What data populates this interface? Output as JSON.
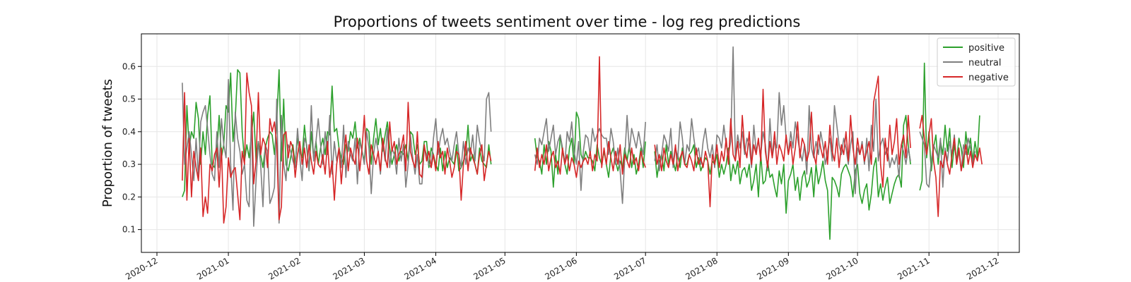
{
  "chart_data": {
    "type": "line",
    "title": "Proportions of tweets sentiment over time - log reg predictions",
    "xlabel": "",
    "ylabel": "Proportion of tweets",
    "x_range": [
      "2020-12-01",
      "2021-12-01"
    ],
    "ylim": [
      0.03,
      0.7
    ],
    "x_ticks": [
      "2020-12",
      "2021-01",
      "2021-02",
      "2021-03",
      "2021-04",
      "2021-05",
      "2021-06",
      "2021-07",
      "2021-08",
      "2021-09",
      "2021-10",
      "2021-11",
      "2021-12"
    ],
    "y_ticks": [
      0.1,
      0.2,
      0.3,
      0.4,
      0.5,
      0.6
    ],
    "grid": true,
    "legend_position": "top-right",
    "segments": [
      {
        "start": "2020-12-12",
        "end": "2021-04-25"
      },
      {
        "start": "2021-05-14",
        "end": "2021-07-01"
      },
      {
        "start": "2021-07-05",
        "end": "2021-10-24"
      },
      {
        "start": "2021-10-28",
        "end": "2021-11-24"
      }
    ],
    "series": [
      {
        "name": "positive",
        "color": "#2ca02c",
        "values": [
          0.2,
          0.22,
          0.48,
          0.35,
          0.4,
          0.38,
          0.49,
          0.44,
          0.3,
          0.4,
          0.33,
          0.45,
          0.51,
          0.3,
          0.29,
          0.34,
          0.45,
          0.32,
          0.36,
          0.48,
          0.46,
          0.58,
          0.37,
          0.44,
          0.59,
          0.58,
          0.4,
          0.31,
          0.36,
          0.32,
          0.39,
          0.46,
          0.31,
          0.37,
          0.33,
          0.29,
          0.35,
          0.38,
          0.4,
          0.39,
          0.33,
          0.43,
          0.59,
          0.31,
          0.5,
          0.3,
          0.28,
          0.32,
          0.36,
          0.3,
          0.38,
          0.34,
          0.32,
          0.42,
          0.35,
          0.28,
          0.4,
          0.32,
          0.37,
          0.3,
          0.35,
          0.38,
          0.33,
          0.4,
          0.39,
          0.54,
          0.4,
          0.41,
          0.35,
          0.32,
          0.3,
          0.36,
          0.34,
          0.4,
          0.38,
          0.43,
          0.35,
          0.38,
          0.34,
          0.31,
          0.41,
          0.4,
          0.3,
          0.38,
          0.44,
          0.36,
          0.41,
          0.34,
          0.39,
          0.43,
          0.35,
          0.3,
          0.33,
          0.36,
          0.31,
          0.34,
          0.33,
          0.36,
          0.31,
          0.4,
          0.39,
          0.33,
          0.36,
          0.3,
          0.31,
          0.37,
          0.37,
          0.29,
          0.35,
          0.33,
          0.3,
          0.28,
          0.35,
          0.28,
          0.34,
          0.29,
          0.32,
          0.31,
          0.3,
          0.36,
          0.28,
          0.29,
          0.31,
          0.33,
          0.42,
          0.31,
          0.33,
          0.3,
          0.27,
          0.35,
          0.31,
          0.3,
          0.29,
          0.36,
          0.3,
          0.38,
          0.32,
          0.31,
          0.27,
          0.36,
          0.3,
          0.37,
          0.34,
          0.23,
          0.33,
          0.27,
          0.39,
          0.34,
          0.3,
          0.27,
          0.35,
          0.38,
          0.3,
          0.46,
          0.44,
          0.33,
          0.31,
          0.34,
          0.32,
          0.32,
          0.31,
          0.28,
          0.36,
          0.32,
          0.3,
          0.34,
          0.3,
          0.26,
          0.33,
          0.35,
          0.31,
          0.28,
          0.31,
          0.29,
          0.35,
          0.31,
          0.36,
          0.29,
          0.33,
          0.27,
          0.3,
          0.35,
          0.29,
          0.37,
          0.34,
          0.26,
          0.31,
          0.33,
          0.28,
          0.36,
          0.3,
          0.34,
          0.31,
          0.28,
          0.33,
          0.29,
          0.35,
          0.3,
          0.3,
          0.33,
          0.34,
          0.36,
          0.29,
          0.32,
          0.28,
          0.3,
          0.32,
          0.31,
          0.27,
          0.31,
          0.3,
          0.33,
          0.26,
          0.3,
          0.27,
          0.3,
          0.35,
          0.25,
          0.3,
          0.27,
          0.31,
          0.24,
          0.28,
          0.29,
          0.26,
          0.3,
          0.22,
          0.25,
          0.3,
          0.2,
          0.33,
          0.24,
          0.25,
          0.31,
          0.26,
          0.27,
          0.23,
          0.2,
          0.28,
          0.24,
          0.3,
          0.15,
          0.25,
          0.27,
          0.3,
          0.22,
          0.26,
          0.19,
          0.26,
          0.28,
          0.23,
          0.25,
          0.29,
          0.2,
          0.3,
          0.24,
          0.27,
          0.31,
          0.25,
          0.22,
          0.07,
          0.26,
          0.25,
          0.23,
          0.2,
          0.27,
          0.29,
          0.3,
          0.28,
          0.26,
          0.2,
          0.28,
          0.3,
          0.21,
          0.18,
          0.22,
          0.24,
          0.16,
          0.21,
          0.29,
          0.32,
          0.2,
          0.24,
          0.19,
          0.23,
          0.26,
          0.18,
          0.21,
          0.24,
          0.26,
          0.27,
          0.23,
          0.42,
          0.45,
          0.36,
          0.3,
          0.22,
          0.25,
          0.61,
          0.32,
          0.4,
          0.28,
          0.35,
          0.39,
          0.3,
          0.37,
          0.33,
          0.42,
          0.34,
          0.41,
          0.29,
          0.36,
          0.31,
          0.38,
          0.35,
          0.29,
          0.4,
          0.33,
          0.38,
          0.31,
          0.37,
          0.32,
          0.45
        ]
      },
      {
        "name": "neutral",
        "color": "#7f7f7f",
        "values": [
          0.55,
          0.3,
          0.35,
          0.4,
          0.33,
          0.25,
          0.38,
          0.26,
          0.43,
          0.46,
          0.48,
          0.41,
          0.33,
          0.27,
          0.25,
          0.4,
          0.29,
          0.44,
          0.36,
          0.32,
          0.56,
          0.3,
          0.16,
          0.46,
          0.38,
          0.34,
          0.27,
          0.3,
          0.19,
          0.17,
          0.45,
          0.11,
          0.25,
          0.37,
          0.3,
          0.17,
          0.36,
          0.34,
          0.18,
          0.2,
          0.23,
          0.5,
          0.12,
          0.45,
          0.3,
          0.25,
          0.36,
          0.34,
          0.31,
          0.29,
          0.41,
          0.32,
          0.25,
          0.38,
          0.36,
          0.28,
          0.48,
          0.31,
          0.37,
          0.44,
          0.36,
          0.3,
          0.4,
          0.33,
          0.45,
          0.27,
          0.37,
          0.31,
          0.35,
          0.29,
          0.42,
          0.26,
          0.37,
          0.33,
          0.31,
          0.38,
          0.24,
          0.37,
          0.34,
          0.3,
          0.4,
          0.35,
          0.21,
          0.33,
          0.38,
          0.34,
          0.27,
          0.37,
          0.31,
          0.41,
          0.29,
          0.35,
          0.33,
          0.27,
          0.38,
          0.31,
          0.36,
          0.23,
          0.3,
          0.39,
          0.32,
          0.27,
          0.33,
          0.24,
          0.24,
          0.35,
          0.33,
          0.3,
          0.29,
          0.38,
          0.44,
          0.33,
          0.38,
          0.41,
          0.36,
          0.38,
          0.34,
          0.31,
          0.36,
          0.4,
          0.33,
          0.29,
          0.37,
          0.3,
          0.35,
          0.33,
          0.39,
          0.31,
          0.42,
          0.37,
          0.34,
          0.31,
          0.5,
          0.52,
          0.4,
          0.33,
          0.3,
          0.38,
          0.36,
          0.4,
          0.44,
          0.34,
          0.38,
          0.42,
          0.33,
          0.37,
          0.39,
          0.35,
          0.3,
          0.4,
          0.37,
          0.43,
          0.34,
          0.3,
          0.37,
          0.22,
          0.34,
          0.39,
          0.38,
          0.33,
          0.41,
          0.37,
          0.39,
          0.41,
          0.39,
          0.38,
          0.38,
          0.33,
          0.41,
          0.37,
          0.3,
          0.35,
          0.28,
          0.18,
          0.32,
          0.45,
          0.34,
          0.41,
          0.38,
          0.35,
          0.4,
          0.36,
          0.33,
          0.43,
          0.31,
          0.36,
          0.28,
          0.33,
          0.39,
          0.37,
          0.34,
          0.41,
          0.29,
          0.35,
          0.32,
          0.43,
          0.38,
          0.3,
          0.36,
          0.34,
          0.44,
          0.38,
          0.33,
          0.35,
          0.3,
          0.37,
          0.41,
          0.35,
          0.32,
          0.36,
          0.29,
          0.39,
          0.38,
          0.35,
          0.42,
          0.36,
          0.33,
          0.37,
          0.66,
          0.32,
          0.39,
          0.35,
          0.4,
          0.33,
          0.38,
          0.36,
          0.29,
          0.42,
          0.34,
          0.37,
          0.33,
          0.4,
          0.36,
          0.28,
          0.44,
          0.32,
          0.37,
          0.35,
          0.52,
          0.42,
          0.48,
          0.38,
          0.33,
          0.4,
          0.35,
          0.43,
          0.38,
          0.34,
          0.31,
          0.36,
          0.27,
          0.48,
          0.35,
          0.32,
          0.37,
          0.33,
          0.4,
          0.36,
          0.3,
          0.34,
          0.38,
          0.31,
          0.48,
          0.42,
          0.36,
          0.33,
          0.38,
          0.35,
          0.3,
          0.36,
          0.4,
          0.21,
          0.35,
          0.33,
          0.37,
          0.3,
          0.38,
          0.28,
          0.42,
          0.34,
          0.5,
          0.31,
          0.36,
          0.38,
          0.33,
          0.35,
          0.29,
          0.32,
          0.3,
          0.33,
          0.26,
          0.36,
          0.34,
          0.3,
          0.35,
          0.31,
          0.4,
          0.38,
          0.36,
          0.24,
          0.23,
          0.31,
          0.36,
          0.34,
          0.32,
          0.38,
          0.23,
          0.35,
          0.31,
          0.37,
          0.33,
          0.39,
          0.3,
          0.34,
          0.28,
          0.36,
          0.33,
          0.38,
          0.35,
          0.3,
          0.34
        ]
      },
      {
        "name": "negative",
        "color": "#d62728",
        "values": [
          0.25,
          0.52,
          0.19,
          0.38,
          0.2,
          0.34,
          0.29,
          0.25,
          0.35,
          0.14,
          0.2,
          0.15,
          0.3,
          0.28,
          0.33,
          0.35,
          0.23,
          0.35,
          0.12,
          0.17,
          0.32,
          0.26,
          0.28,
          0.29,
          0.21,
          0.13,
          0.34,
          0.3,
          0.58,
          0.52,
          0.48,
          0.24,
          0.31,
          0.52,
          0.33,
          0.38,
          0.36,
          0.29,
          0.44,
          0.4,
          0.43,
          0.36,
          0.13,
          0.17,
          0.39,
          0.4,
          0.32,
          0.37,
          0.35,
          0.26,
          0.33,
          0.37,
          0.3,
          0.35,
          0.29,
          0.36,
          0.31,
          0.27,
          0.34,
          0.3,
          0.29,
          0.33,
          0.27,
          0.37,
          0.26,
          0.31,
          0.19,
          0.3,
          0.35,
          0.24,
          0.33,
          0.39,
          0.28,
          0.35,
          0.32,
          0.3,
          0.38,
          0.28,
          0.35,
          0.45,
          0.31,
          0.27,
          0.36,
          0.33,
          0.3,
          0.34,
          0.28,
          0.38,
          0.32,
          0.29,
          0.43,
          0.34,
          0.37,
          0.3,
          0.33,
          0.35,
          0.39,
          0.28,
          0.49,
          0.34,
          0.31,
          0.29,
          0.4,
          0.27,
          0.26,
          0.36,
          0.31,
          0.34,
          0.29,
          0.33,
          0.28,
          0.37,
          0.32,
          0.34,
          0.27,
          0.35,
          0.31,
          0.26,
          0.29,
          0.34,
          0.33,
          0.19,
          0.3,
          0.37,
          0.28,
          0.35,
          0.32,
          0.3,
          0.27,
          0.33,
          0.36,
          0.25,
          0.3,
          0.34,
          0.31,
          0.28,
          0.35,
          0.29,
          0.33,
          0.3,
          0.36,
          0.28,
          0.32,
          0.34,
          0.29,
          0.31,
          0.27,
          0.35,
          0.3,
          0.33,
          0.28,
          0.32,
          0.3,
          0.26,
          0.31,
          0.29,
          0.31,
          0.32,
          0.3,
          0.34,
          0.28,
          0.33,
          0.31,
          0.63,
          0.29,
          0.35,
          0.3,
          0.37,
          0.32,
          0.28,
          0.34,
          0.3,
          0.36,
          0.27,
          0.33,
          0.31,
          0.29,
          0.35,
          0.3,
          0.32,
          0.28,
          0.34,
          0.31,
          0.29,
          0.36,
          0.3,
          0.33,
          0.28,
          0.35,
          0.31,
          0.29,
          0.33,
          0.3,
          0.36,
          0.28,
          0.32,
          0.34,
          0.3,
          0.29,
          0.33,
          0.31,
          0.28,
          0.35,
          0.3,
          0.32,
          0.29,
          0.34,
          0.31,
          0.17,
          0.33,
          0.3,
          0.36,
          0.29,
          0.34,
          0.31,
          0.38,
          0.3,
          0.44,
          0.33,
          0.31,
          0.37,
          0.29,
          0.45,
          0.35,
          0.32,
          0.4,
          0.3,
          0.36,
          0.33,
          0.38,
          0.31,
          0.53,
          0.34,
          0.29,
          0.37,
          0.32,
          0.4,
          0.3,
          0.36,
          0.34,
          0.31,
          0.39,
          0.33,
          0.37,
          0.3,
          0.35,
          0.43,
          0.32,
          0.38,
          0.36,
          0.31,
          0.34,
          0.46,
          0.33,
          0.3,
          0.39,
          0.35,
          0.32,
          0.37,
          0.3,
          0.42,
          0.34,
          0.31,
          0.38,
          0.29,
          0.36,
          0.33,
          0.4,
          0.31,
          0.45,
          0.35,
          0.3,
          0.38,
          0.33,
          0.36,
          0.31,
          0.34,
          0.37,
          0.3,
          0.49,
          0.53,
          0.57,
          0.3,
          0.23,
          0.38,
          0.31,
          0.42,
          0.33,
          0.37,
          0.44,
          0.3,
          0.36,
          0.39,
          0.32,
          0.45,
          0.35,
          0.41,
          0.45,
          0.38,
          0.33,
          0.39,
          0.44,
          0.31,
          0.26,
          0.14,
          0.31,
          0.29,
          0.34,
          0.3,
          0.27,
          0.33,
          0.38,
          0.3,
          0.35,
          0.28,
          0.32,
          0.36,
          0.3,
          0.34,
          0.29,
          0.33,
          0.31,
          0.35,
          0.3,
          0.28,
          0.27
        ]
      }
    ]
  }
}
